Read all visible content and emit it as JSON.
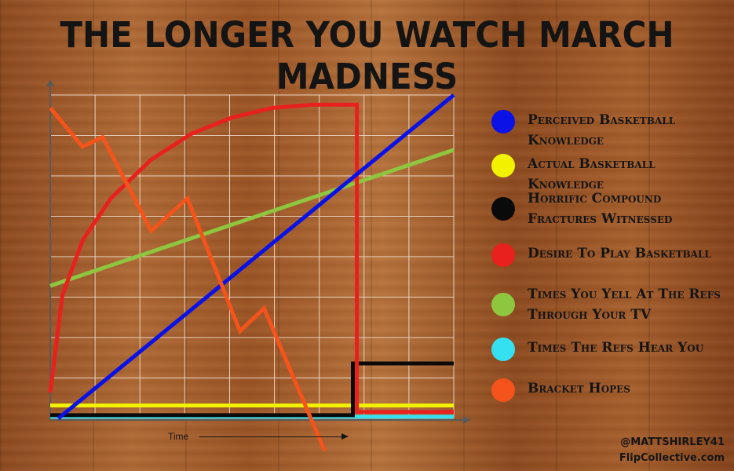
{
  "title": "THE LONGER YOU WATCH MARCH MADNESS",
  "time_axis_label": "Time",
  "credits": {
    "handle": "@MATTSHIRLEY41",
    "site": "FlipCollective.com"
  },
  "colors": {
    "background": "#9c5424",
    "grid": "#f3e6d6",
    "axis": "#5a5a5a",
    "text": "#141414"
  },
  "chart_data": {
    "type": "line",
    "title": "THE LONGER YOU WATCH MARCH MADNESS",
    "xlabel": "Time",
    "ylabel": "",
    "xlim": [
      0,
      100
    ],
    "ylim": [
      0,
      100
    ],
    "grid": true,
    "legend_position": "right",
    "series": [
      {
        "name": "Perceived Basketball Knowledge",
        "color": "#0a12e6",
        "points": [
          [
            2,
            0
          ],
          [
            100,
            100
          ]
        ]
      },
      {
        "name": "Actual Basketball Knowledge",
        "color": "#f2f200",
        "points": [
          [
            0,
            4
          ],
          [
            100,
            4
          ]
        ]
      },
      {
        "name": "Horrific Compound Fractures Witnessed",
        "color": "#0a0a0a",
        "points": [
          [
            0,
            1
          ],
          [
            75,
            1
          ],
          [
            75,
            17
          ],
          [
            100,
            17
          ]
        ]
      },
      {
        "name": "Desire To Play Basketball",
        "color": "#e8201e",
        "points": [
          [
            0,
            8
          ],
          [
            3,
            38
          ],
          [
            8,
            55
          ],
          [
            15,
            68
          ],
          [
            25,
            80
          ],
          [
            35,
            88
          ],
          [
            45,
            93
          ],
          [
            55,
            96
          ],
          [
            65,
            97
          ],
          [
            76,
            97
          ],
          [
            76,
            2
          ],
          [
            100,
            2
          ]
        ]
      },
      {
        "name": "Times You Yell At The Refs Through Your TV",
        "color": "#8ec63f",
        "points": [
          [
            0,
            41
          ],
          [
            100,
            83
          ]
        ]
      },
      {
        "name": "Times The Refs Hear You",
        "color": "#35e0f0",
        "points": [
          [
            0,
            0.5
          ],
          [
            100,
            0.5
          ]
        ]
      },
      {
        "name": "Bracket Hopes",
        "color": "#f4541b",
        "points": [
          [
            0,
            96
          ],
          [
            8,
            84
          ],
          [
            13,
            87
          ],
          [
            25,
            58
          ],
          [
            34,
            68
          ],
          [
            47,
            27
          ],
          [
            53,
            34
          ],
          [
            68,
            -10
          ]
        ]
      }
    ]
  }
}
